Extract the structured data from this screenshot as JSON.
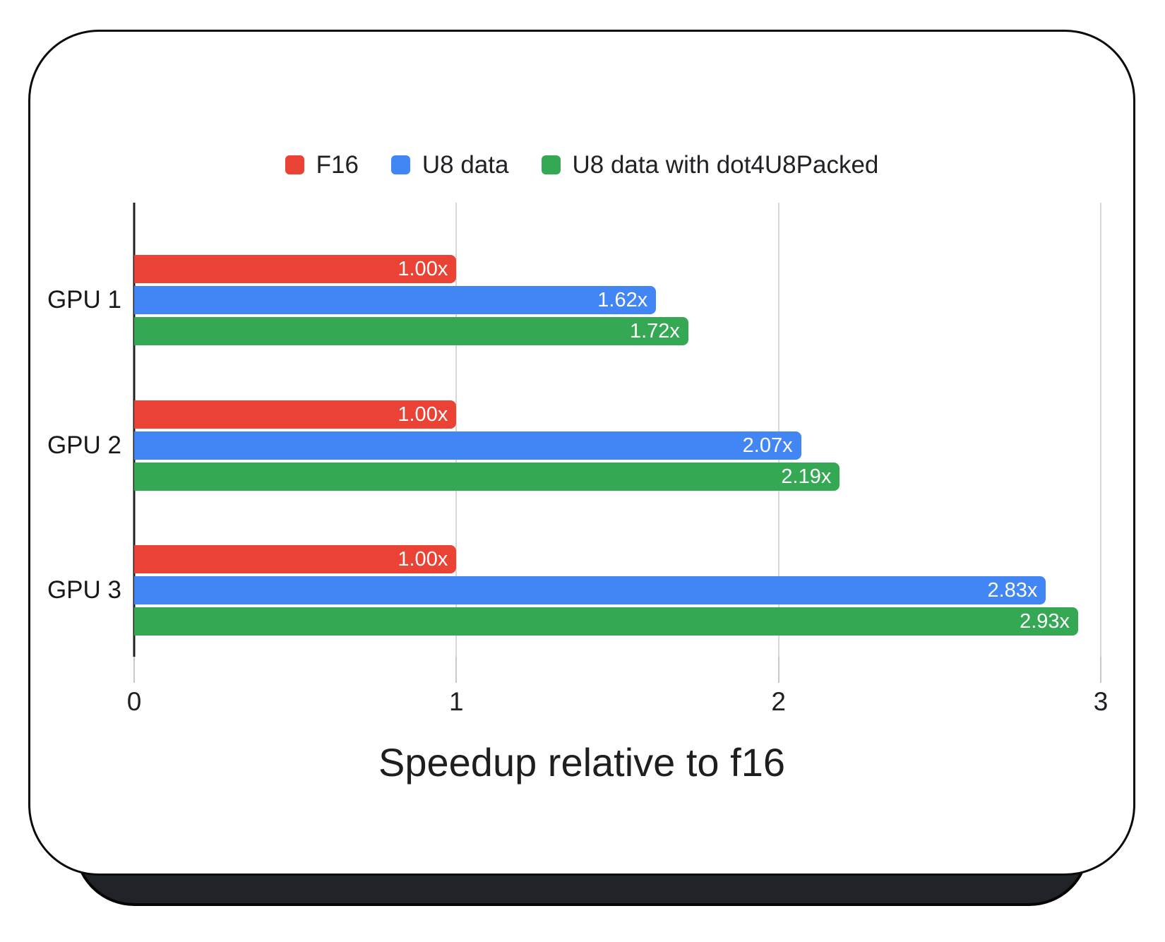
{
  "chart_data": {
    "type": "bar",
    "orientation": "horizontal",
    "title": "",
    "xlabel": "Speedup relative to f16",
    "ylabel": "",
    "categories": [
      "GPU 1",
      "GPU 2",
      "GPU 3"
    ],
    "series": [
      {
        "name": "F16",
        "color": "#EA4335",
        "values": [
          1.0,
          1.0,
          1.0
        ],
        "labels": [
          "1.00x",
          "1.00x",
          "1.00x"
        ]
      },
      {
        "name": "U8 data",
        "color": "#4285F4",
        "values": [
          1.62,
          2.07,
          2.83
        ],
        "labels": [
          "1.62x",
          "2.07x",
          "2.83x"
        ]
      },
      {
        "name": "U8 data with dot4U8Packed",
        "color": "#34A853",
        "values": [
          1.72,
          2.19,
          2.93
        ],
        "labels": [
          "1.72x",
          "2.19x",
          "2.93x"
        ]
      }
    ],
    "xlim": [
      0,
      3
    ],
    "x_ticks": [
      "0",
      "1",
      "2",
      "3"
    ],
    "grid": true,
    "legend_position": "top"
  },
  "style": {
    "axis_color": "#212121",
    "gridline_color": "#d8d8d8",
    "bar_label_color": "#ffffff",
    "card_background": "#ffffff",
    "shadow_color": "#202327"
  }
}
